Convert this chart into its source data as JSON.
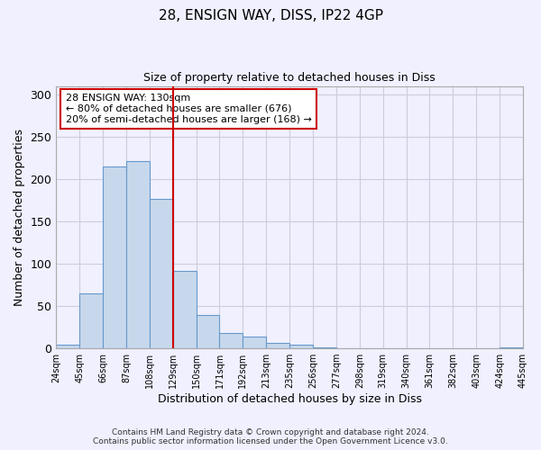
{
  "title": "28, ENSIGN WAY, DISS, IP22 4GP",
  "subtitle": "Size of property relative to detached houses in Diss",
  "xlabel": "Distribution of detached houses by size in Diss",
  "ylabel": "Number of detached properties",
  "bar_values": [
    4,
    65,
    215,
    221,
    177,
    92,
    39,
    18,
    14,
    6,
    4,
    1,
    0,
    0,
    0,
    0,
    0,
    0,
    0,
    1
  ],
  "bar_labels": [
    "24sqm",
    "45sqm",
    "66sqm",
    "87sqm",
    "108sqm",
    "129sqm",
    "150sqm",
    "171sqm",
    "192sqm",
    "213sqm",
    "235sqm",
    "256sqm",
    "277sqm",
    "298sqm",
    "319sqm",
    "340sqm",
    "361sqm",
    "382sqm",
    "403sqm",
    "424sqm",
    "445sqm"
  ],
  "bar_color": "#c8d8ec",
  "bar_edge_color": "#6699cc",
  "ylim": [
    0,
    310
  ],
  "yticks": [
    0,
    50,
    100,
    150,
    200,
    250,
    300
  ],
  "property_line_color": "#cc0000",
  "annotation_box_text": "28 ENSIGN WAY: 130sqm\n← 80% of detached houses are smaller (676)\n20% of semi-detached houses are larger (168) →",
  "footer_line1": "Contains HM Land Registry data © Crown copyright and database right 2024.",
  "footer_line2": "Contains public sector information licensed under the Open Government Licence v3.0.",
  "background_color": "#f0f0ff",
  "grid_color": "#ccccdd"
}
